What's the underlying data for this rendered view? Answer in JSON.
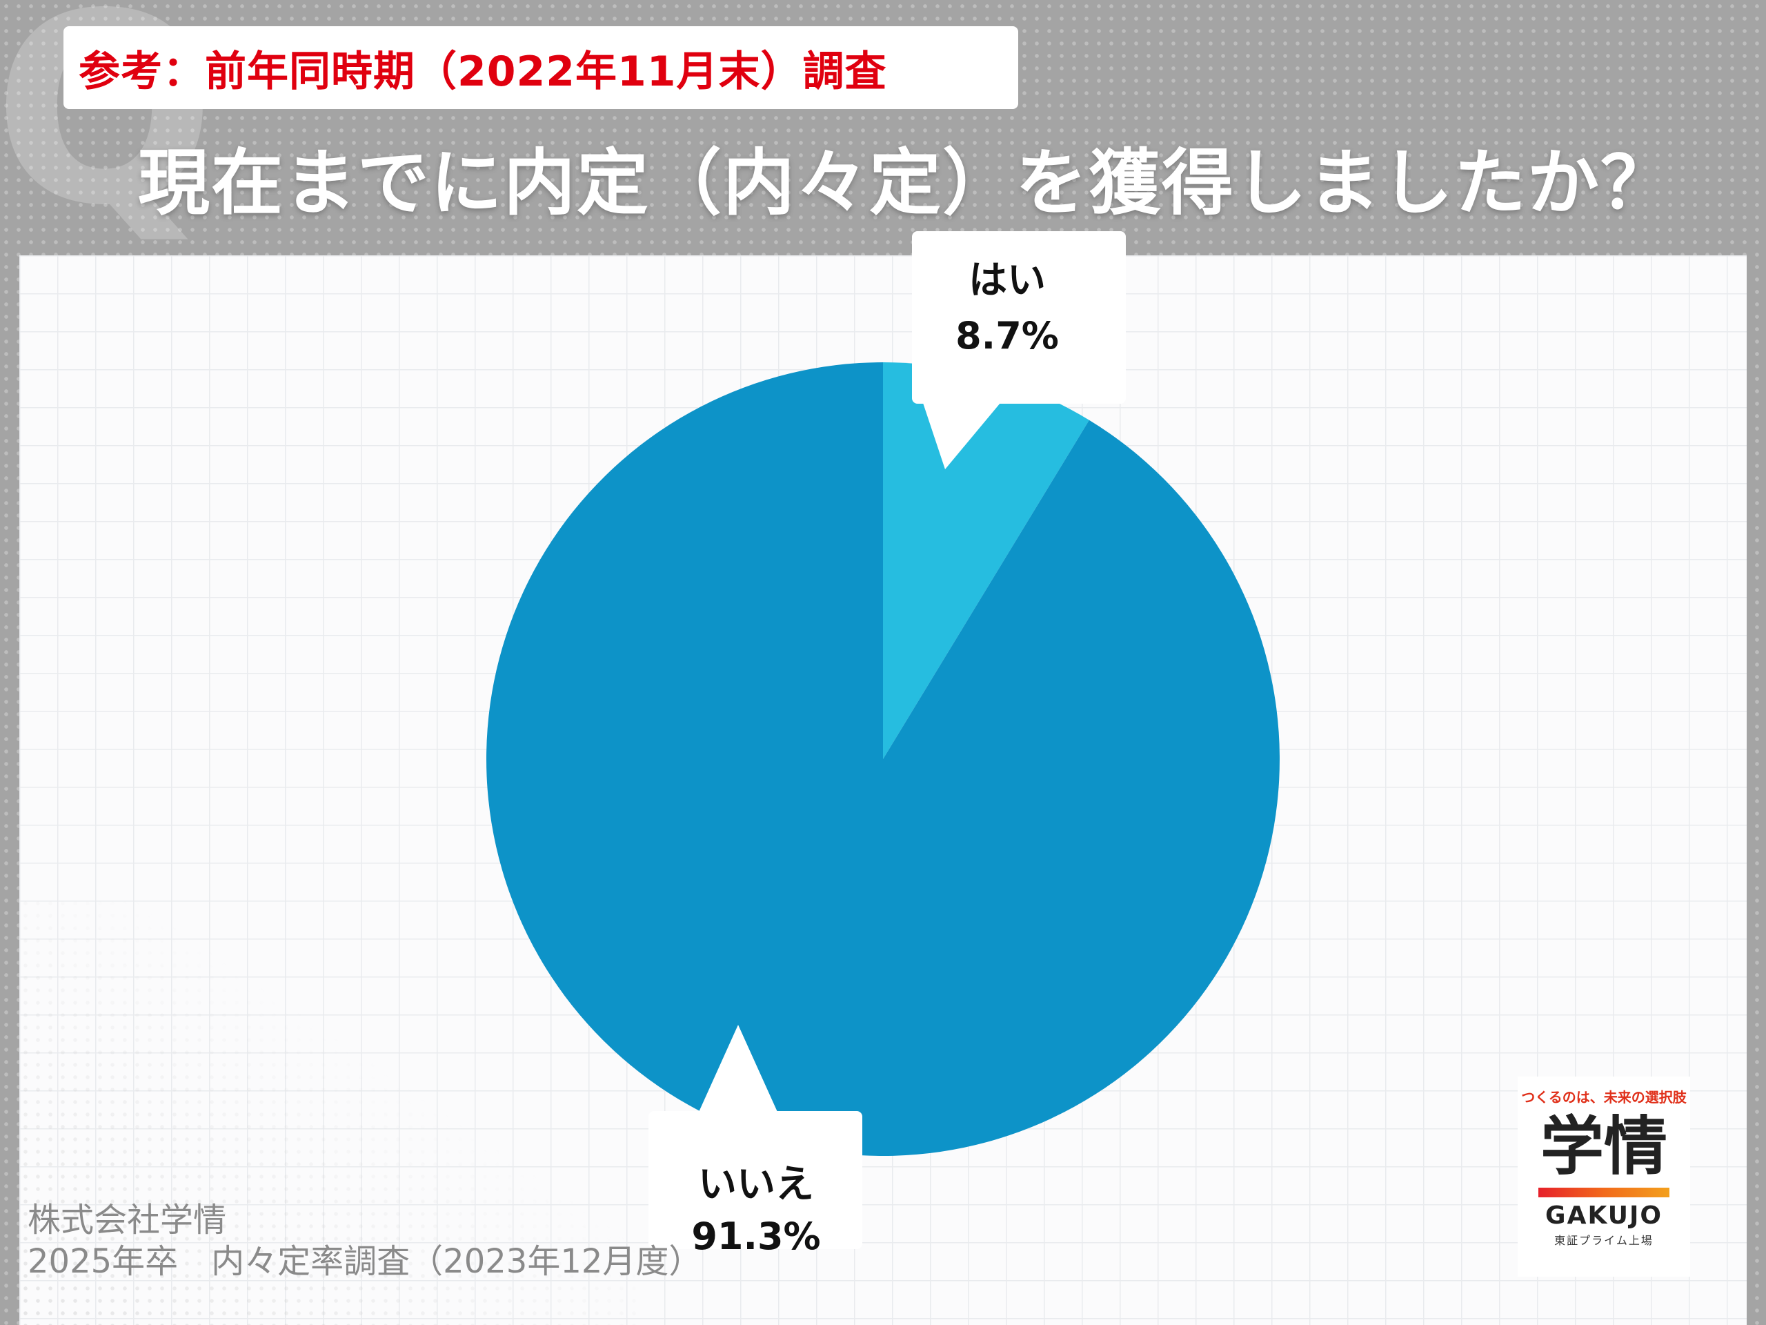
{
  "header": {
    "reference_note": "参考：前年同時期（2022年11月末）調査",
    "question": "現在までに内定（内々定）を獲得しましたか？"
  },
  "chart_data": {
    "type": "pie",
    "categories": [
      "はい",
      "いいえ"
    ],
    "values": [
      8.7,
      91.3
    ],
    "value_labels": [
      "8.7%",
      "91.3%"
    ],
    "colors": [
      "#26bde0",
      "#0d93c8"
    ],
    "start": "12 o'clock, clockwise"
  },
  "footer": {
    "line1": "株式会社学情",
    "line2": "2025年卒　内々定率調査（2023年12月度）"
  },
  "logo": {
    "tagline": "つくるのは、未来の選択肢",
    "name": "学情",
    "name_en": "GAKUJO",
    "sub": "東証プライム上場"
  }
}
